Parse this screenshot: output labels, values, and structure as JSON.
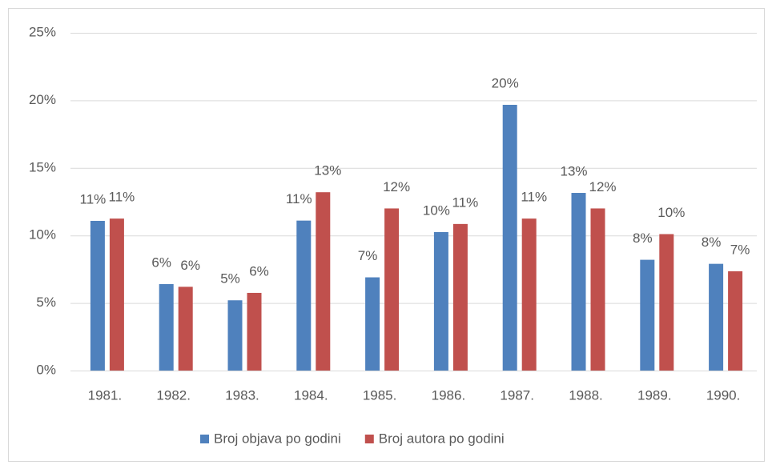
{
  "chart_data": {
    "type": "bar",
    "categories": [
      "1981.",
      "1982.",
      "1983.",
      "1984.",
      "1985.",
      "1986.",
      "1987.",
      "1988.",
      "1989.",
      "1990."
    ],
    "series": [
      {
        "name": "Broj objava po godini",
        "color": "#4f81bd",
        "values": [
          11.08,
          6.4,
          5.2,
          11.1,
          6.9,
          10.25,
          19.67,
          13.15,
          8.2,
          7.9
        ],
        "value_labels": [
          "11%",
          "6%",
          "5%",
          "11%",
          "7%",
          "10%",
          "20%",
          "13%",
          "8%",
          "8%"
        ]
      },
      {
        "name": "Broj autora po godini",
        "color": "#c0504d",
        "values": [
          11.25,
          6.2,
          5.75,
          13.2,
          12.0,
          10.85,
          11.25,
          12.0,
          10.1,
          7.35
        ],
        "value_labels": [
          "11%",
          "6%",
          "6%",
          "13%",
          "12%",
          "11%",
          "11%",
          "12%",
          "10%",
          "7%"
        ]
      }
    ],
    "ylim": [
      0,
      25
    ],
    "yticks": [
      {
        "value": 0,
        "label": "0%"
      },
      {
        "value": 5,
        "label": "5%"
      },
      {
        "value": 10,
        "label": "10%"
      },
      {
        "value": 15,
        "label": "15%"
      },
      {
        "value": 20,
        "label": "20%"
      },
      {
        "value": 25,
        "label": "25%"
      }
    ],
    "grid": true,
    "legend": "bottom"
  }
}
